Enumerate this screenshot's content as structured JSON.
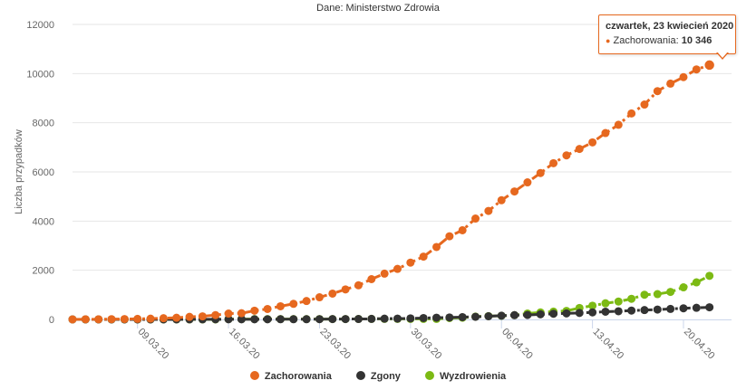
{
  "header": {
    "subtitle": "Dane: Ministerstwo Zdrowia"
  },
  "tooltip": {
    "title": "czwartek, 23 kwiecień 2020",
    "series_label": "Zachorowania",
    "value": "10 346"
  },
  "chart_data": {
    "type": "line",
    "subtitle": "Dane: Ministerstwo Zdrowia",
    "ylabel": "Liczba przypadków",
    "ylim": [
      0,
      12000
    ],
    "yticks": [
      0,
      2000,
      4000,
      6000,
      8000,
      10000,
      12000
    ],
    "ytick_labels": [
      "0",
      "2000",
      "4000",
      "6000",
      "8000",
      "10000",
      "12000"
    ],
    "x_start": "2020-03-04",
    "x_end": "2020-04-23",
    "xtick_labels": [
      "09.03.20",
      "16.03.20",
      "23.03.20",
      "30.03.20",
      "06.04.20",
      "13.04.20",
      "20.04.20"
    ],
    "xtick_dates": [
      "2020-03-09",
      "2020-03-16",
      "2020-03-23",
      "2020-03-30",
      "2020-04-06",
      "2020-04-13",
      "2020-04-20"
    ],
    "grid": true,
    "legend_position": "bottom",
    "series": [
      {
        "name": "Zachorowania",
        "color": "#e6681f",
        "values": [
          1,
          5,
          6,
          11,
          16,
          22,
          31,
          49,
          68,
          104,
          125,
          177,
          238,
          251,
          355,
          425,
          536,
          634,
          749,
          901,
          1051,
          1221,
          1389,
          1638,
          1862,
          2055,
          2311,
          2554,
          2946,
          3383,
          3627,
          4102,
          4413,
          4848,
          5205,
          5575,
          5955,
          6356,
          6674,
          6934,
          7202,
          7582,
          7918,
          8379,
          8742,
          9287,
          9593,
          9856,
          10169,
          10346
        ]
      },
      {
        "name": "Zgony",
        "color": "#333333",
        "values": [
          0,
          0,
          0,
          0,
          0,
          0,
          0,
          1,
          2,
          3,
          3,
          5,
          5,
          5,
          5,
          5,
          7,
          7,
          8,
          10,
          14,
          16,
          18,
          22,
          31,
          33,
          43,
          57,
          71,
          79,
          94,
          107,
          129,
          152,
          174,
          181,
          208,
          232,
          245,
          263,
          286,
          314,
          332,
          360,
          380,
          401,
          426,
          453,
          473,
          494
        ]
      },
      {
        "name": "Wyzdrowienia",
        "color": "#7cba14",
        "values": [
          0,
          0,
          0,
          0,
          0,
          0,
          0,
          0,
          0,
          0,
          0,
          0,
          13,
          13,
          13,
          13,
          13,
          13,
          13,
          16,
          16,
          16,
          19,
          21,
          21,
          21,
          21,
          21,
          21,
          56,
          71,
          114,
          134,
          148,
          174,
          241,
          283,
          317,
          347,
          466,
          557,
          656,
          728,
          838,
          1004,
          1030,
          1119,
          1305,
          1507,
          1772
        ]
      }
    ]
  }
}
